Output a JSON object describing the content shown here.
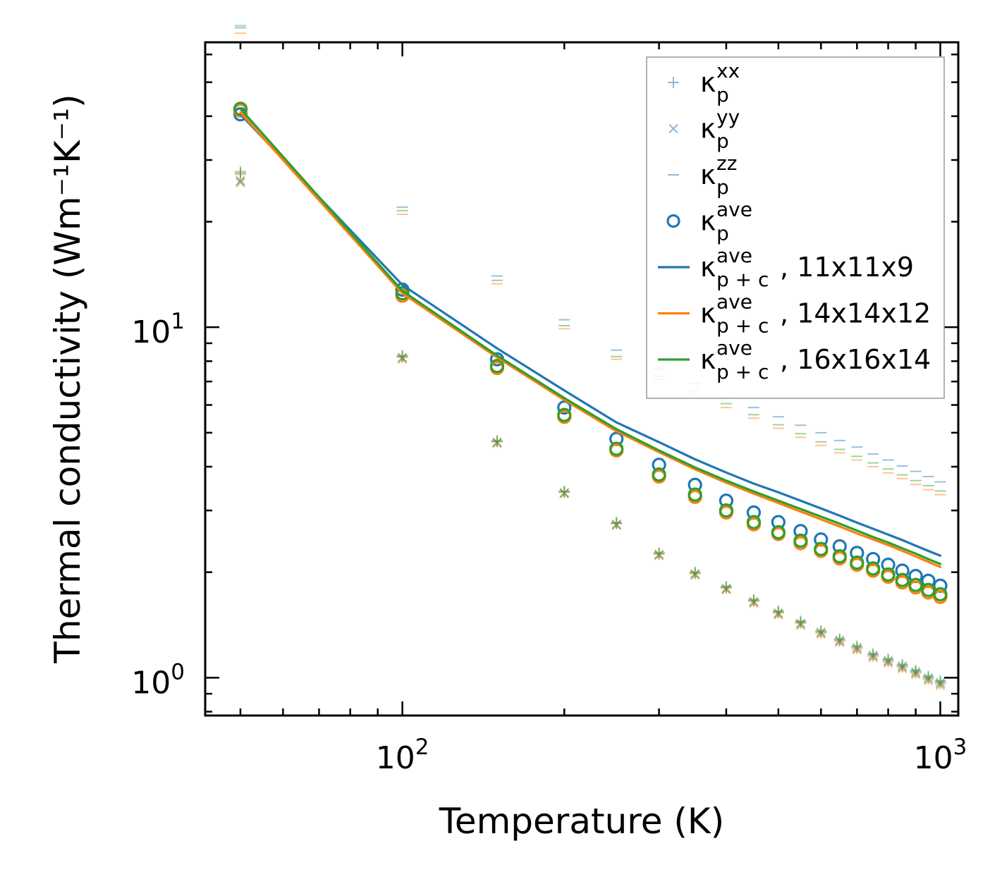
{
  "chart_data": {
    "type": "scatter",
    "title": "",
    "xlabel": "Temperature (K)",
    "ylabel": "Thermal conductivity (Wm⁻¹K⁻¹)",
    "xscale": "log",
    "yscale": "log",
    "xlim": [
      43,
      1080
    ],
    "ylim": [
      0.78,
      65
    ],
    "x_ticks": [
      {
        "value": 100,
        "base": "10",
        "exp": "2"
      },
      {
        "value": 1000,
        "base": "10",
        "exp": "3"
      }
    ],
    "y_ticks": [
      {
        "value": 1,
        "base": "10",
        "exp": "0"
      },
      {
        "value": 10,
        "base": "10",
        "exp": "1"
      }
    ],
    "legend_position": "upper-right",
    "colors": {
      "c11": "#1f77b4",
      "c14": "#ff7f0e",
      "c16": "#2ca02c",
      "light": "#8fb8dc"
    },
    "temperature": [
      50,
      100,
      150,
      200,
      250,
      300,
      350,
      400,
      450,
      500,
      550,
      600,
      650,
      700,
      750,
      800,
      850,
      900,
      950,
      1000
    ],
    "legend": [
      {
        "base": "κ",
        "sub": "p",
        "sup": "xx",
        "suffix": "",
        "marker": "plus",
        "color": "#8fb8dc"
      },
      {
        "base": "κ",
        "sub": "p",
        "sup": "yy",
        "suffix": "",
        "marker": "x",
        "color": "#8fb8dc"
      },
      {
        "base": "κ",
        "sub": "p",
        "sup": "zz",
        "suffix": "",
        "marker": "dash",
        "color": "#8fb8dc"
      },
      {
        "base": "κ",
        "sub": "p",
        "sup": "ave",
        "suffix": "",
        "marker": "circle",
        "color": "#1f77b4"
      },
      {
        "base": "κ",
        "sub": "p + c",
        "sup": "ave",
        "suffix": ", 11x11x9",
        "marker": "line",
        "color": "#1f77b4"
      },
      {
        "base": "κ",
        "sub": "p + c",
        "sup": "ave",
        "suffix": ", 14x14x12",
        "marker": "line",
        "color": "#ff7f0e"
      },
      {
        "base": "κ",
        "sub": "p + c",
        "sup": "ave",
        "suffix": ", 16x16x14",
        "marker": "line",
        "color": "#2ca02c"
      }
    ],
    "series": [
      {
        "name": "kxx 11x11x9",
        "marker": "plus",
        "color": "#1f77b4",
        "alpha": 0.45,
        "values": [
          27.5,
          8.25,
          4.73,
          3.39,
          2.76,
          2.26,
          1.99,
          1.81,
          1.66,
          1.54,
          1.44,
          1.35,
          1.28,
          1.22,
          1.16,
          1.12,
          1.08,
          1.04,
          1.0,
          0.97
        ]
      },
      {
        "name": "kxx 14x14x12",
        "marker": "plus",
        "color": "#ff7f0e",
        "alpha": 0.45,
        "values": [
          27.3,
          8.2,
          4.71,
          3.38,
          2.75,
          2.25,
          1.98,
          1.8,
          1.65,
          1.53,
          1.43,
          1.34,
          1.27,
          1.21,
          1.15,
          1.11,
          1.07,
          1.03,
          0.99,
          0.96
        ]
      },
      {
        "name": "kxx 16x16x14",
        "marker": "plus",
        "color": "#2ca02c",
        "alpha": 0.45,
        "values": [
          27.8,
          8.3,
          4.74,
          3.4,
          2.77,
          2.27,
          2.0,
          1.82,
          1.67,
          1.55,
          1.45,
          1.36,
          1.29,
          1.23,
          1.17,
          1.13,
          1.09,
          1.05,
          1.01,
          0.98
        ]
      },
      {
        "name": "kyy 11x11x9",
        "marker": "x",
        "color": "#1f77b4",
        "alpha": 0.45,
        "values": [
          26.0,
          8.15,
          4.68,
          3.36,
          2.73,
          2.24,
          1.97,
          1.79,
          1.64,
          1.52,
          1.42,
          1.34,
          1.27,
          1.21,
          1.15,
          1.11,
          1.07,
          1.03,
          0.99,
          0.96
        ]
      },
      {
        "name": "kyy 14x14x12",
        "marker": "x",
        "color": "#ff7f0e",
        "alpha": 0.45,
        "values": [
          25.8,
          8.1,
          4.66,
          3.35,
          2.72,
          2.23,
          1.96,
          1.78,
          1.63,
          1.51,
          1.41,
          1.33,
          1.26,
          1.2,
          1.14,
          1.1,
          1.06,
          1.02,
          0.98,
          0.95
        ]
      },
      {
        "name": "kyy 16x16x14",
        "marker": "x",
        "color": "#2ca02c",
        "alpha": 0.45,
        "values": [
          26.2,
          8.2,
          4.7,
          3.37,
          2.74,
          2.25,
          1.98,
          1.8,
          1.65,
          1.53,
          1.43,
          1.35,
          1.28,
          1.22,
          1.16,
          1.12,
          1.08,
          1.04,
          1.0,
          0.97
        ]
      },
      {
        "name": "kzz 11x11x9",
        "marker": "dash",
        "color": "#1f77b4",
        "alpha": 0.45,
        "values": [
          71.5,
          22.0,
          14.0,
          10.5,
          8.6,
          7.6,
          6.9,
          6.3,
          5.9,
          5.55,
          5.25,
          5.0,
          4.75,
          4.55,
          4.35,
          4.18,
          4.02,
          3.88,
          3.75,
          3.62
        ]
      },
      {
        "name": "kzz 14x14x12",
        "marker": "dash",
        "color": "#ff7f0e",
        "alpha": 0.45,
        "values": [
          69.0,
          21.0,
          13.3,
          9.9,
          8.1,
          7.1,
          6.45,
          5.9,
          5.5,
          5.15,
          4.85,
          4.6,
          4.38,
          4.18,
          4.0,
          3.84,
          3.7,
          3.56,
          3.44,
          3.33
        ]
      },
      {
        "name": "kzz 16x16x14",
        "marker": "dash",
        "color": "#2ca02c",
        "alpha": 0.45,
        "values": [
          72.5,
          21.5,
          13.6,
          10.1,
          8.25,
          7.25,
          6.6,
          6.05,
          5.63,
          5.27,
          4.97,
          4.71,
          4.48,
          4.28,
          4.1,
          3.94,
          3.79,
          3.65,
          3.53,
          3.41
        ]
      },
      {
        "name": "kave 11x11x9",
        "marker": "circle",
        "color": "#1f77b4",
        "alpha": 1,
        "values": [
          40.5,
          12.8,
          8.1,
          5.9,
          4.8,
          4.05,
          3.55,
          3.2,
          2.96,
          2.78,
          2.62,
          2.48,
          2.37,
          2.27,
          2.18,
          2.1,
          2.02,
          1.95,
          1.89,
          1.83
        ]
      },
      {
        "name": "kave 14x14x12",
        "marker": "circle",
        "color": "#ff7f0e",
        "alpha": 1,
        "values": [
          41.5,
          12.3,
          7.65,
          5.55,
          4.45,
          3.75,
          3.28,
          2.96,
          2.74,
          2.57,
          2.42,
          2.3,
          2.19,
          2.1,
          2.02,
          1.94,
          1.87,
          1.81,
          1.75,
          1.7
        ]
      },
      {
        "name": "kave 16x16x14",
        "marker": "circle",
        "color": "#2ca02c",
        "alpha": 1,
        "values": [
          42.0,
          12.5,
          7.75,
          5.62,
          4.5,
          3.8,
          3.33,
          3.0,
          2.78,
          2.6,
          2.46,
          2.33,
          2.22,
          2.13,
          2.05,
          1.97,
          1.9,
          1.84,
          1.78,
          1.73
        ]
      },
      {
        "name": "kp+c 11x11x9",
        "marker": "line",
        "color": "#1f77b4",
        "alpha": 1,
        "values": [
          40.5,
          13.2,
          8.7,
          6.6,
          5.35,
          4.7,
          4.2,
          3.85,
          3.58,
          3.38,
          3.2,
          3.04,
          2.9,
          2.77,
          2.66,
          2.56,
          2.47,
          2.38,
          2.3,
          2.23
        ]
      },
      {
        "name": "kp+c 14x14x12",
        "marker": "line",
        "color": "#ff7f0e",
        "alpha": 1,
        "values": [
          41.0,
          12.5,
          8.2,
          6.2,
          5.05,
          4.4,
          3.93,
          3.6,
          3.35,
          3.15,
          2.98,
          2.83,
          2.7,
          2.58,
          2.48,
          2.39,
          2.3,
          2.22,
          2.14,
          2.07
        ]
      },
      {
        "name": "kp+c 16x16x14",
        "marker": "line",
        "color": "#2ca02c",
        "alpha": 1,
        "values": [
          42.0,
          12.7,
          8.3,
          6.28,
          5.12,
          4.45,
          3.98,
          3.65,
          3.4,
          3.2,
          3.03,
          2.88,
          2.75,
          2.63,
          2.52,
          2.43,
          2.34,
          2.26,
          2.18,
          2.11
        ]
      }
    ]
  }
}
